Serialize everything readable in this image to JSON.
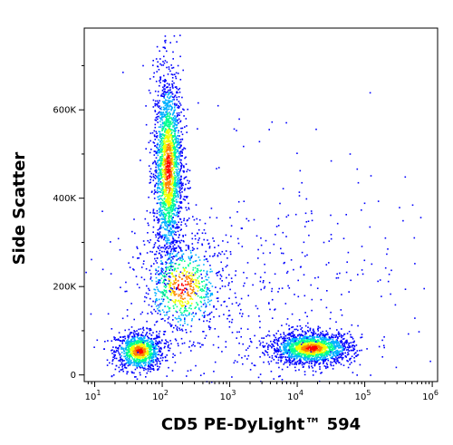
{
  "chart_data": {
    "type": "scatter",
    "subtype": "flow-cytometry density dot plot",
    "title": "",
    "xlabel": "CD5 PE-DyLight™ 594",
    "ylabel": "Side Scatter",
    "x_scale": "log",
    "xlim": [
      7,
      1200000
    ],
    "y_scale": "linear",
    "ylim": [
      -15000,
      785000
    ],
    "grid": false,
    "legend": "none",
    "x_ticks": [
      {
        "value": 10,
        "base": "10",
        "exp": "1"
      },
      {
        "value": 100,
        "base": "10",
        "exp": "2"
      },
      {
        "value": 1000,
        "base": "10",
        "exp": "3"
      },
      {
        "value": 10000,
        "base": "10",
        "exp": "4"
      },
      {
        "value": 100000,
        "base": "10",
        "exp": "5"
      },
      {
        "value": 1000000,
        "base": "10",
        "exp": "6"
      }
    ],
    "y_ticks": [
      {
        "value": 0,
        "label": "0"
      },
      {
        "value": 200000,
        "label": "200K"
      },
      {
        "value": 400000,
        "label": "400K"
      },
      {
        "value": 600000,
        "label": "600K"
      }
    ],
    "populations": [
      {
        "name": "cluster-1",
        "center": [
          45,
          55000
        ],
        "spread_log_x": 0.18,
        "spread_y": 22000,
        "relative_count": 0.16
      },
      {
        "name": "cluster-2",
        "center": [
          120,
          470000
        ],
        "spread_log_x": 0.11,
        "spread_y": 110000,
        "relative_count": 0.34
      },
      {
        "name": "cluster-3",
        "center": [
          200,
          200000
        ],
        "spread_log_x": 0.3,
        "spread_y": 55000,
        "relative_count": 0.12
      },
      {
        "name": "cluster-4",
        "center": [
          16000,
          62000
        ],
        "spread_log_x": 0.3,
        "spread_y": 18000,
        "relative_count": 0.28
      },
      {
        "name": "scatter",
        "center": [
          2000,
          150000
        ],
        "spread_log_x": 1.2,
        "spread_y": 180000,
        "relative_count": 0.1
      }
    ],
    "colormap": [
      "#0000ff",
      "#00b0ff",
      "#00ff90",
      "#f0ff00",
      "#ff8000",
      "#ff0000"
    ]
  }
}
